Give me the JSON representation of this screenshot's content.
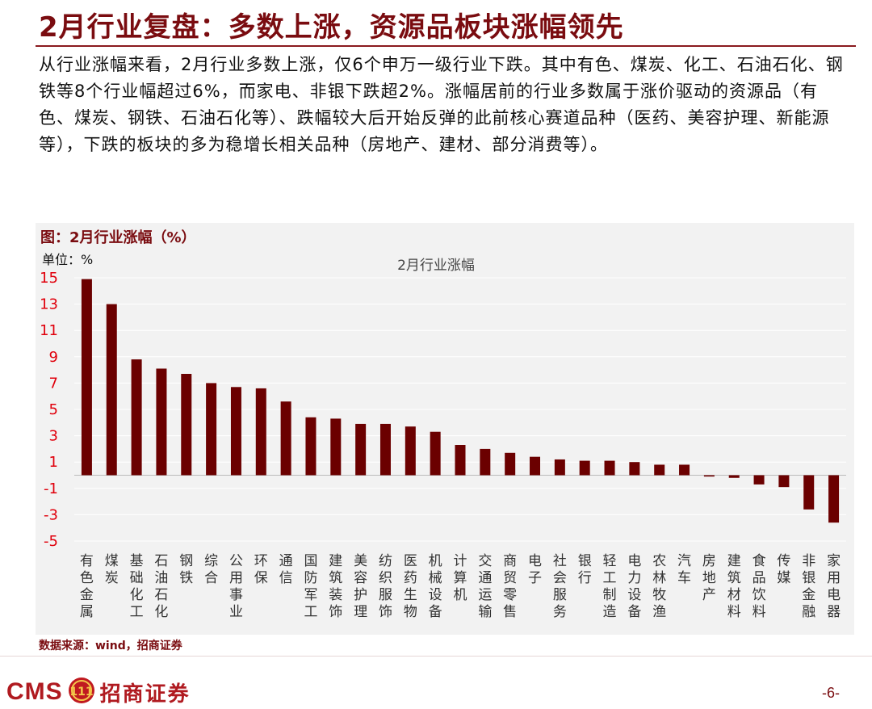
{
  "slide": {
    "title": "2月行业复盘：多数上涨，资源品板块涨幅领先",
    "summary": "从行业涨幅来看，2月行业多数上涨，仅6个申万一级行业下跌。其中有色、煤炭、化工、石油石化、钢铁等8个行业幅超过6%，而家电、非银下跌超2%。涨幅居前的行业多数属于涨价驱动的资源品（有色、煤炭、钢铁、石油石化等）、跌幅较大后开始反弹的此前核心赛道品种（医药、美容护理、新能源等），下跌的板块的多为稳增长相关品种（房地产、建材、部分消费等）。",
    "chart_caption": "图：2月行业涨幅（%）",
    "unit_label": "单位：%",
    "source_note": "数据来源：wind，招商证券",
    "page_number": "-6-"
  },
  "brand": {
    "logo_text": "CMS",
    "logo_mark_text": "111",
    "company_name": "招商证券",
    "logo_icon": "cms-badge-icon"
  },
  "colors": {
    "accent": "#7a0c10",
    "bar": "#6b0000",
    "panel": "#f2f2f2",
    "grid": "#ffffff",
    "axis_text": "#e0000c"
  },
  "chart_data": {
    "type": "bar",
    "title": "2月行业涨幅",
    "xlabel": "",
    "ylabel": "",
    "ylim": [
      -5,
      15
    ],
    "yticks": [
      15,
      13,
      11,
      9,
      7,
      5,
      3,
      1,
      -1,
      -3,
      -5
    ],
    "grid": true,
    "legend": "none",
    "categories": [
      "有色金属",
      "煤炭",
      "基础化工",
      "石油石化",
      "钢铁",
      "综合",
      "公用事业",
      "环保",
      "通信",
      "国防军工",
      "建筑装饰",
      "美容护理",
      "纺织服饰",
      "医药生物",
      "机械设备",
      "计算机",
      "交通运输",
      "商贸零售",
      "电子",
      "社会服务",
      "银行",
      "轻工制造",
      "电力设备",
      "农林牧渔",
      "汽车",
      "房地产",
      "建筑材料",
      "食品饮料",
      "传媒",
      "非银金融",
      "家用电器"
    ],
    "values": [
      14.9,
      13.0,
      8.8,
      8.1,
      7.7,
      7.0,
      6.7,
      6.6,
      5.6,
      4.4,
      4.3,
      3.9,
      3.9,
      3.7,
      3.3,
      2.3,
      2.0,
      1.7,
      1.4,
      1.2,
      1.1,
      1.1,
      1.0,
      0.8,
      0.8,
      -0.1,
      -0.2,
      -0.7,
      -0.9,
      -2.6,
      -3.6
    ]
  }
}
